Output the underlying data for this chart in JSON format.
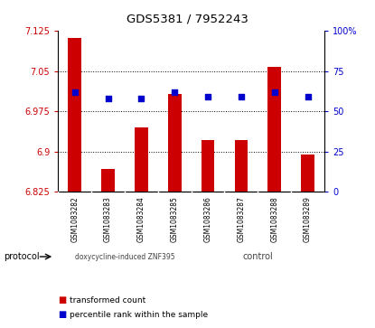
{
  "title": "GDS5381 / 7952243",
  "samples": [
    "GSM1083282",
    "GSM1083283",
    "GSM1083284",
    "GSM1083285",
    "GSM1083286",
    "GSM1083287",
    "GSM1083288",
    "GSM1083289"
  ],
  "transformed_counts": [
    7.112,
    6.868,
    6.945,
    7.008,
    6.921,
    6.922,
    7.058,
    6.895
  ],
  "percentile_ranks": [
    62,
    58,
    58,
    62,
    59,
    59,
    62,
    59
  ],
  "bar_base": 6.825,
  "ylim_left": [
    6.825,
    7.125
  ],
  "ylim_right": [
    0,
    100
  ],
  "yticks_left": [
    6.825,
    6.9,
    6.975,
    7.05,
    7.125
  ],
  "yticks_right": [
    0,
    25,
    50,
    75,
    100
  ],
  "bar_color": "#cc0000",
  "dot_color": "#0000cc",
  "group1_label": "doxycycline-induced ZNF395",
  "group2_label": "control",
  "group1_count": 4,
  "group2_count": 4,
  "protocol_label": "protocol",
  "legend_bar_label": "transformed count",
  "legend_dot_label": "percentile rank within the sample",
  "bg_color": "#ffffff",
  "plot_bg_color": "#ffffff",
  "tick_label_color_left": "#cc0000",
  "tick_label_color_right": "#0000cc",
  "grid_color": "#000000",
  "sample_bg_color": "#cccccc",
  "group_bg_color": "#88ee88",
  "grid_yticks": [
    6.9,
    6.975,
    7.05
  ],
  "bar_width": 0.4
}
